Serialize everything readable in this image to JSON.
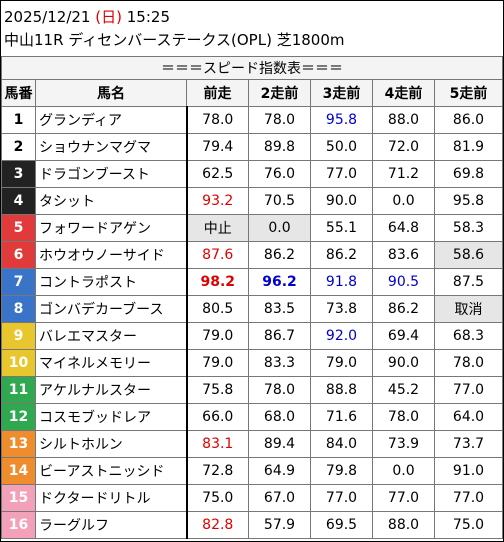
{
  "header": {
    "date": "2025/12/21",
    "dow_open": "(",
    "dow": "日",
    "dow_close": ")",
    "time": "15:25",
    "race": "中山11R ディセンバーステークス(OPL) 芝1800m"
  },
  "table": {
    "title": "＝＝＝スピード指数表＝＝＝",
    "columns": [
      "馬番",
      "馬名",
      "前走",
      "2走前",
      "3走前",
      "4走前",
      "5走前"
    ],
    "rows": [
      {
        "num": "1",
        "name": "グランディア",
        "bg": "#ffffff",
        "fg": "#000000",
        "cells": [
          {
            "t": "78.0"
          },
          {
            "t": "78.0"
          },
          {
            "t": "95.8",
            "c": "blue"
          },
          {
            "t": "88.0"
          },
          {
            "t": "86.0"
          }
        ]
      },
      {
        "num": "2",
        "name": "ショウナンマグマ",
        "bg": "#ffffff",
        "fg": "#000000",
        "cells": [
          {
            "t": "79.4"
          },
          {
            "t": "89.8"
          },
          {
            "t": "50.0"
          },
          {
            "t": "72.0"
          },
          {
            "t": "81.9"
          }
        ]
      },
      {
        "num": "3",
        "name": "ドラゴンブースト",
        "bg": "#222222",
        "fg": "#ffffff",
        "cells": [
          {
            "t": "62.5"
          },
          {
            "t": "76.0"
          },
          {
            "t": "77.0"
          },
          {
            "t": "71.2"
          },
          {
            "t": "69.8"
          }
        ]
      },
      {
        "num": "4",
        "name": "タシット",
        "bg": "#222222",
        "fg": "#ffffff",
        "cells": [
          {
            "t": "93.2",
            "c": "red"
          },
          {
            "t": "70.5"
          },
          {
            "t": "90.0"
          },
          {
            "t": "0.0"
          },
          {
            "t": "95.8"
          }
        ]
      },
      {
        "num": "5",
        "name": "フォワードアゲン",
        "bg": "#e03a3a",
        "fg": "#ffffff",
        "cells": [
          {
            "t": "中止",
            "g": true
          },
          {
            "t": "0.0",
            "g": true
          },
          {
            "t": "55.1"
          },
          {
            "t": "64.8"
          },
          {
            "t": "58.3"
          }
        ]
      },
      {
        "num": "6",
        "name": "ホウオウノーサイド",
        "bg": "#e03a3a",
        "fg": "#ffffff",
        "cells": [
          {
            "t": "87.6",
            "c": "red"
          },
          {
            "t": "86.2"
          },
          {
            "t": "86.2"
          },
          {
            "t": "83.6"
          },
          {
            "t": "58.6",
            "g": true
          }
        ]
      },
      {
        "num": "7",
        "name": "コントラポスト",
        "bg": "#3a74c9",
        "fg": "#ffffff",
        "cells": [
          {
            "t": "98.2",
            "c": "red",
            "b": true
          },
          {
            "t": "96.2",
            "c": "blue",
            "b": true
          },
          {
            "t": "91.8",
            "c": "blue"
          },
          {
            "t": "90.5",
            "c": "blue"
          },
          {
            "t": "87.5"
          }
        ]
      },
      {
        "num": "8",
        "name": "ゴンバデカーブース",
        "bg": "#3a74c9",
        "fg": "#ffffff",
        "cells": [
          {
            "t": "80.5"
          },
          {
            "t": "83.5"
          },
          {
            "t": "73.8"
          },
          {
            "t": "86.2"
          },
          {
            "t": "取消",
            "g": true
          }
        ]
      },
      {
        "num": "9",
        "name": "バレエマスター",
        "bg": "#e8c72e",
        "fg": "#ffffff",
        "cells": [
          {
            "t": "79.0"
          },
          {
            "t": "86.7"
          },
          {
            "t": "92.0",
            "c": "blue"
          },
          {
            "t": "69.4"
          },
          {
            "t": "68.3"
          }
        ]
      },
      {
        "num": "10",
        "name": "マイネルメモリー",
        "bg": "#e8c72e",
        "fg": "#ffffff",
        "cells": [
          {
            "t": "79.0"
          },
          {
            "t": "83.3"
          },
          {
            "t": "79.0"
          },
          {
            "t": "90.0"
          },
          {
            "t": "78.0"
          }
        ]
      },
      {
        "num": "11",
        "name": "アケルナルスター",
        "bg": "#2fa84f",
        "fg": "#ffffff",
        "cells": [
          {
            "t": "75.8"
          },
          {
            "t": "78.0"
          },
          {
            "t": "88.8"
          },
          {
            "t": "45.2"
          },
          {
            "t": "77.0"
          }
        ]
      },
      {
        "num": "12",
        "name": "コスモブッドレア",
        "bg": "#2fa84f",
        "fg": "#ffffff",
        "cells": [
          {
            "t": "66.0"
          },
          {
            "t": "68.0"
          },
          {
            "t": "71.6"
          },
          {
            "t": "78.0"
          },
          {
            "t": "64.0"
          }
        ]
      },
      {
        "num": "13",
        "name": "シルトホルン",
        "bg": "#ef8d2e",
        "fg": "#ffffff",
        "cells": [
          {
            "t": "83.1",
            "c": "red"
          },
          {
            "t": "89.4"
          },
          {
            "t": "84.0"
          },
          {
            "t": "73.9"
          },
          {
            "t": "73.7"
          }
        ]
      },
      {
        "num": "14",
        "name": "ビーアストニッシド",
        "bg": "#ef8d2e",
        "fg": "#ffffff",
        "cells": [
          {
            "t": "72.8"
          },
          {
            "t": "64.9"
          },
          {
            "t": "79.8"
          },
          {
            "t": "0.0"
          },
          {
            "t": "91.0"
          }
        ]
      },
      {
        "num": "15",
        "name": "ドクタードリトル",
        "bg": "#f2a1b8",
        "fg": "#ffffff",
        "cells": [
          {
            "t": "75.0"
          },
          {
            "t": "67.0"
          },
          {
            "t": "77.0"
          },
          {
            "t": "77.0"
          },
          {
            "t": "77.0"
          }
        ]
      },
      {
        "num": "16",
        "name": "ラーグルフ",
        "bg": "#f2a1b8",
        "fg": "#ffffff",
        "cells": [
          {
            "t": "82.8",
            "c": "red"
          },
          {
            "t": "57.9"
          },
          {
            "t": "69.5"
          },
          {
            "t": "88.0"
          },
          {
            "t": "75.0"
          }
        ]
      }
    ]
  },
  "colors": {
    "red": "#e00000",
    "blue": "#0000d0",
    "highlight_gray": "#e6e6e6"
  }
}
